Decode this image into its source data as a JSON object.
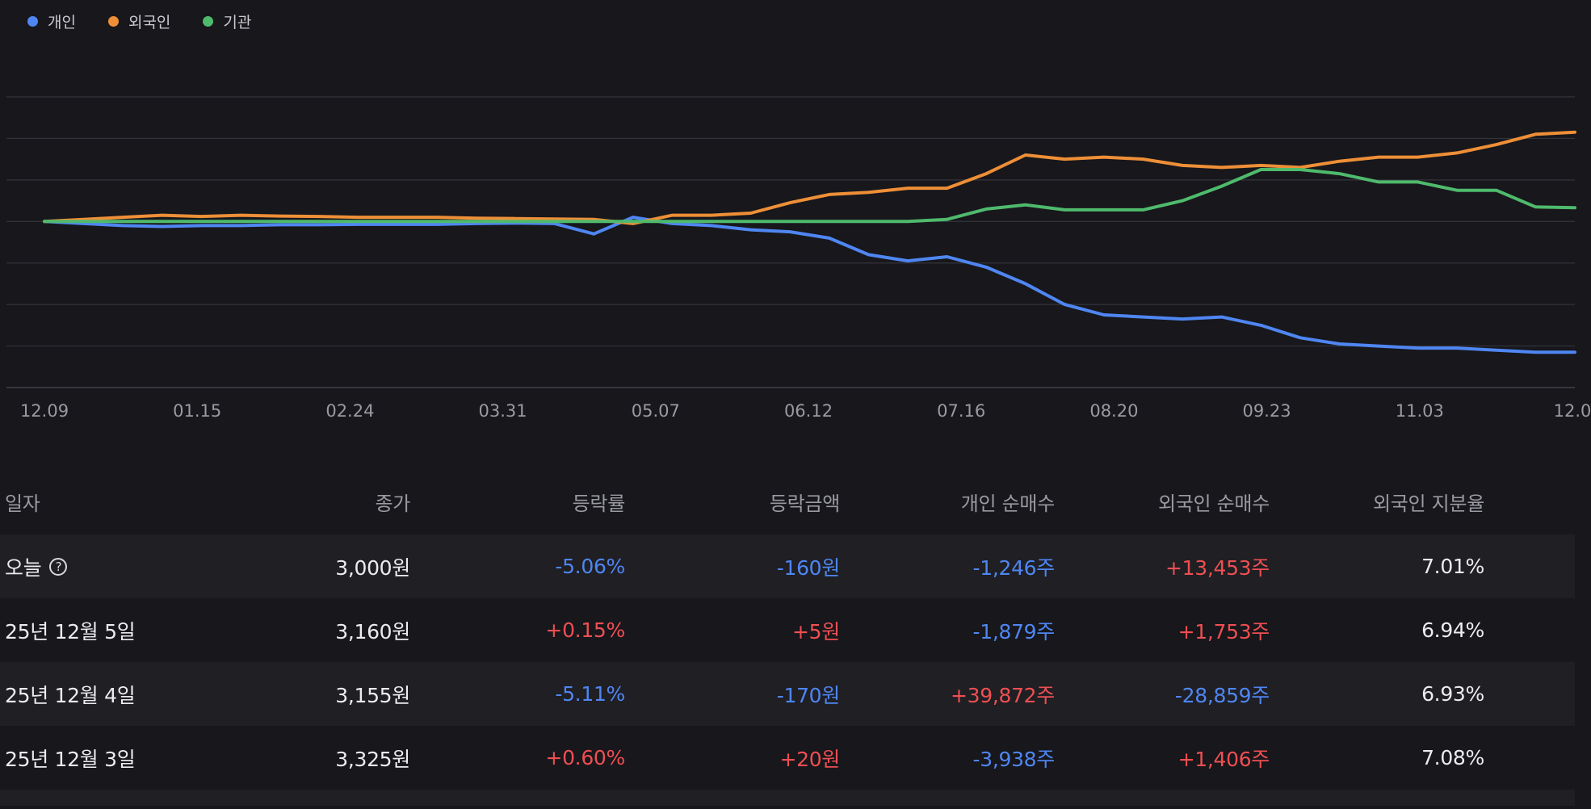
{
  "legend": {
    "items": [
      {
        "label": "개인",
        "color": "#4f86f2"
      },
      {
        "label": "외국인",
        "color": "#ee8f37"
      },
      {
        "label": "기관",
        "color": "#4fba6c"
      }
    ]
  },
  "chart_data": {
    "type": "line",
    "x_tick_labels": [
      "12.09",
      "01.15",
      "02.24",
      "03.31",
      "05.07",
      "06.12",
      "07.16",
      "08.20",
      "09.23",
      "11.03",
      "12.0"
    ],
    "gridlines": 7,
    "ylim": [
      -4,
      3
    ],
    "series": [
      {
        "name": "개인",
        "color": "#4f86f2",
        "values": [
          0,
          -0.05,
          -0.1,
          -0.12,
          -0.1,
          -0.1,
          -0.08,
          -0.08,
          -0.07,
          -0.07,
          -0.07,
          -0.05,
          -0.04,
          -0.05,
          -0.3,
          0.1,
          -0.05,
          -0.1,
          -0.2,
          -0.25,
          -0.4,
          -0.8,
          -0.95,
          -0.85,
          -1.1,
          -1.5,
          -2.0,
          -2.25,
          -2.3,
          -2.35,
          -2.3,
          -2.5,
          -2.8,
          -2.95,
          -3.0,
          -3.05,
          -3.05,
          -3.1,
          -3.15,
          -3.15
        ]
      },
      {
        "name": "외국인",
        "color": "#ee8f37",
        "values": [
          0,
          0.05,
          0.1,
          0.15,
          0.12,
          0.15,
          0.13,
          0.12,
          0.1,
          0.1,
          0.1,
          0.08,
          0.07,
          0.06,
          0.05,
          -0.05,
          0.15,
          0.15,
          0.2,
          0.45,
          0.65,
          0.7,
          0.8,
          0.8,
          1.15,
          1.6,
          1.5,
          1.55,
          1.5,
          1.35,
          1.3,
          1.35,
          1.3,
          1.45,
          1.55,
          1.55,
          1.65,
          1.85,
          2.1,
          2.15
        ]
      },
      {
        "name": "기관",
        "color": "#4fba6c",
        "values": [
          0,
          0,
          0,
          0,
          0,
          0,
          0,
          0,
          0,
          0,
          0,
          0,
          0,
          0,
          0,
          0,
          0,
          0,
          0,
          0,
          0,
          0,
          0,
          0.05,
          0.3,
          0.4,
          0.28,
          0.28,
          0.28,
          0.5,
          0.85,
          1.25,
          1.25,
          1.15,
          0.95,
          0.95,
          0.75,
          0.75,
          0.35,
          0.33
        ]
      }
    ]
  },
  "table": {
    "headers": {
      "date": "일자",
      "close": "종가",
      "rate": "등락률",
      "amount": "등락금액",
      "indiv": "개인 순매수",
      "foreign": "외국인 순매수",
      "share": "외국인 지분율"
    },
    "rows": [
      {
        "date": "오늘",
        "close": "3,000원",
        "rate": "-5.06%",
        "amount": "-160원",
        "indiv": "-1,246주",
        "foreign": "+13,453주",
        "share": "7.01%"
      },
      {
        "date": "25년 12월 5일",
        "close": "3,160원",
        "rate": "+0.15%",
        "amount": "+5원",
        "indiv": "-1,879주",
        "foreign": "+1,753주",
        "share": "6.94%"
      },
      {
        "date": "25년 12월 4일",
        "close": "3,155원",
        "rate": "-5.11%",
        "amount": "-170원",
        "indiv": "+39,872주",
        "foreign": "-28,859주",
        "share": "6.93%"
      },
      {
        "date": "25년 12월 3일",
        "close": "3,325원",
        "rate": "+0.60%",
        "amount": "+20원",
        "indiv": "-3,938주",
        "foreign": "+1,406주",
        "share": "7.08%"
      }
    ],
    "help_glyph": "?"
  }
}
